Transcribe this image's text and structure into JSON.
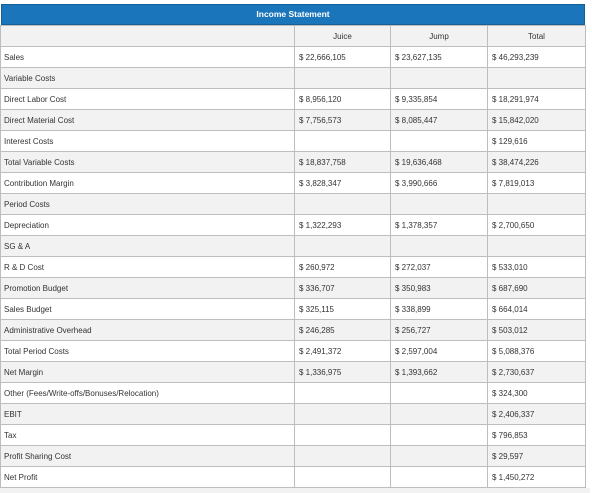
{
  "title": "Income Statement",
  "columns": [
    "Juice",
    "Jump",
    "Total"
  ],
  "rows": [
    {
      "label": "Sales",
      "juice": "$ 22,666,105",
      "jump": "$ 23,627,135",
      "total": "$ 46,293,239"
    },
    {
      "label": "Variable Costs",
      "juice": "",
      "jump": "",
      "total": ""
    },
    {
      "label": "Direct Labor Cost",
      "juice": "$ 8,956,120",
      "jump": "$ 9,335,854",
      "total": "$ 18,291,974"
    },
    {
      "label": "Direct Material Cost",
      "juice": "$ 7,756,573",
      "jump": "$ 8,085,447",
      "total": "$ 15,842,020"
    },
    {
      "label": "Interest Costs",
      "juice": "",
      "jump": "",
      "total": "$ 129,616"
    },
    {
      "label": "Total Variable Costs",
      "juice": "$ 18,837,758",
      "jump": "$ 19,636,468",
      "total": "$ 38,474,226"
    },
    {
      "label": "Contribution Margin",
      "juice": "$ 3,828,347",
      "jump": "$ 3,990,666",
      "total": "$ 7,819,013"
    },
    {
      "label": "Period Costs",
      "juice": "",
      "jump": "",
      "total": ""
    },
    {
      "label": "Depreciation",
      "juice": "$ 1,322,293",
      "jump": "$ 1,378,357",
      "total": "$ 2,700,650"
    },
    {
      "label": "SG & A",
      "juice": "",
      "jump": "",
      "total": ""
    },
    {
      "label": "R & D Cost",
      "juice": "$ 260,972",
      "jump": "$ 272,037",
      "total": "$ 533,010"
    },
    {
      "label": "Promotion Budget",
      "juice": "$ 336,707",
      "jump": "$ 350,983",
      "total": "$ 687,690"
    },
    {
      "label": "Sales Budget",
      "juice": "$ 325,115",
      "jump": "$ 338,899",
      "total": "$ 664,014"
    },
    {
      "label": "Administrative Overhead",
      "juice": "$ 246,285",
      "jump": "$ 256,727",
      "total": "$ 503,012"
    },
    {
      "label": "Total Period Costs",
      "juice": "$ 2,491,372",
      "jump": "$ 2,597,004",
      "total": "$ 5,088,376"
    },
    {
      "label": "Net Margin",
      "juice": "$ 1,336,975",
      "jump": "$ 1,393,662",
      "total": "$ 2,730,637"
    },
    {
      "label": "Other (Fees/Write-offs/Bonuses/Relocation)",
      "juice": "",
      "jump": "",
      "total": "$ 324,300"
    },
    {
      "label": "EBIT",
      "juice": "",
      "jump": "",
      "total": "$ 2,406,337"
    },
    {
      "label": "Tax",
      "juice": "",
      "jump": "",
      "total": "$ 796,853"
    },
    {
      "label": "Profit Sharing Cost",
      "juice": "",
      "jump": "",
      "total": "$ 29,597"
    },
    {
      "label": "Net Profit",
      "juice": "",
      "jump": "",
      "total": "$ 1,450,272"
    }
  ],
  "colors": {
    "title_bar": "#1b75bb",
    "title_text": "#ffffff",
    "shaded_row": "#f2f2f2",
    "grid": "#bdbdbd"
  }
}
